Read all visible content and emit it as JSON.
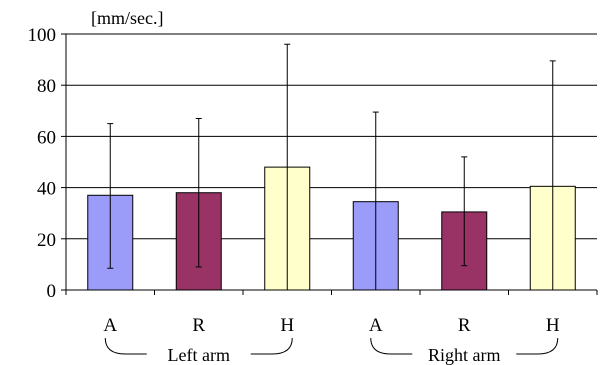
{
  "chart_data": {
    "type": "bar",
    "unit_label": "[mm/sec.]",
    "ylim": [
      0,
      100
    ],
    "yticks": [
      0,
      20,
      40,
      60,
      80,
      100
    ],
    "grid": true,
    "categories": [
      "A",
      "R",
      "H",
      "A",
      "R",
      "H"
    ],
    "values": [
      37,
      38,
      48,
      34.5,
      30.5,
      40.5
    ],
    "error_low": [
      8.5,
      9,
      0,
      0,
      9.5,
      0
    ],
    "error_high": [
      65,
      67,
      96,
      69.5,
      52,
      89.5
    ],
    "groups": [
      {
        "label": "Left arm",
        "span": [
          0,
          2
        ]
      },
      {
        "label": "Right arm",
        "span": [
          3,
          5
        ]
      }
    ],
    "bar_colors": [
      "#9b9bfa",
      "#993366",
      "#ffffcc",
      "#9b9bfa",
      "#993366",
      "#ffffcc"
    ]
  }
}
